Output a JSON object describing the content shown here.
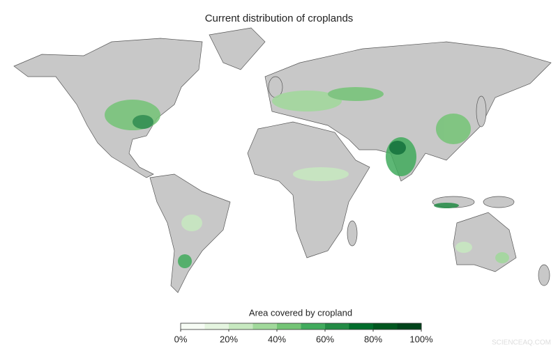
{
  "title": "Current distribution of croplands",
  "legend": {
    "title": "Area covered by cropland",
    "lim": [
      0,
      100
    ],
    "ticks": [
      {
        "value": 0,
        "label": "0%"
      },
      {
        "value": 20,
        "label": "20%"
      },
      {
        "value": 40,
        "label": "40%"
      },
      {
        "value": 60,
        "label": "60%"
      },
      {
        "value": 80,
        "label": "80%"
      },
      {
        "value": 100,
        "label": "100%"
      }
    ],
    "colors": [
      "#f7fcf5",
      "#e5f5e0",
      "#c7e9c0",
      "#a1d99b",
      "#74c476",
      "#41ab5d",
      "#238b45",
      "#006d2c",
      "#00571f",
      "#00441b"
    ]
  },
  "watermark": "SCIENCEAQ.COM"
}
